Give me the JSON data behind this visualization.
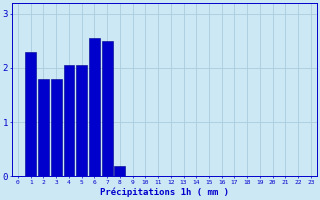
{
  "categories": [
    0,
    1,
    2,
    3,
    4,
    5,
    6,
    7,
    8,
    9,
    10,
    11,
    12,
    13,
    14,
    15,
    16,
    17,
    18,
    19,
    20,
    21,
    22,
    23
  ],
  "values": [
    0,
    2.3,
    1.8,
    1.8,
    2.05,
    2.05,
    2.55,
    2.5,
    0.2,
    0,
    0,
    0,
    0,
    0,
    0,
    0,
    0,
    0,
    0,
    0,
    0,
    0,
    0,
    0
  ],
  "bar_color": "#0000cc",
  "bar_edge_color": "#00008b",
  "background_color": "#cce8f4",
  "grid_color": "#aaccdd",
  "xlabel": "Précipitations 1h ( mm )",
  "xlabel_color": "#0000cc",
  "tick_color": "#0000cc",
  "axis_color": "#0000cc",
  "ylim": [
    0,
    3.2
  ],
  "yticks": [
    0,
    1,
    2,
    3
  ],
  "xlim": [
    -0.5,
    23.5
  ],
  "bar_width": 0.85,
  "figsize": [
    3.2,
    2.0
  ],
  "dpi": 100
}
